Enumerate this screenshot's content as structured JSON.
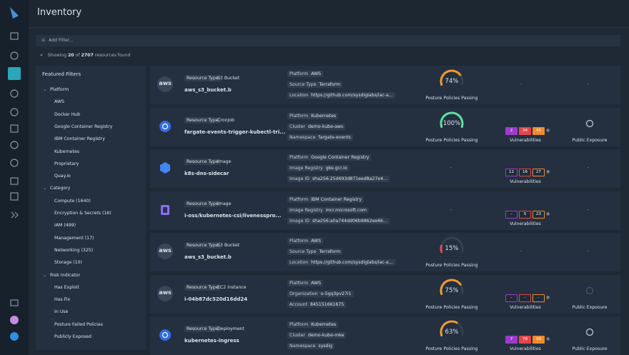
{
  "header": {
    "title": "Inventory"
  },
  "filter_bar": {
    "placeholder": "Add Filter..."
  },
  "summary": {
    "prefix": "Showing",
    "shown": 20,
    "middle": "of",
    "total": 2707,
    "suffix": "resources found"
  },
  "featured_filters": {
    "title": "Featured Filters",
    "groups": [
      {
        "name": "Platform",
        "items": [
          "AWS",
          "Docker Hub",
          "Google Container Registry",
          "IBM Container Registry",
          "Kubernetes",
          "Proprietary",
          "Quay.io"
        ]
      },
      {
        "name": "Category",
        "items": [
          "Compute (1640)",
          "Encryption & Secrets (16)",
          "IAM (499)",
          "Management (17)",
          "Networking (325)",
          "Storage (10)"
        ]
      },
      {
        "name": "Risk Indicator",
        "items": [
          "Has Exploit",
          "Has Fix",
          "In Use",
          "Posture Failed Policies",
          "Publicly Exposed"
        ]
      }
    ]
  },
  "resources": [
    {
      "logo": "aws",
      "type_label": "Resource Type",
      "type": "S3 Bucket",
      "name": "aws_s3_bucket.b",
      "details": [
        [
          "Platform",
          "AWS"
        ],
        [
          "Source Type",
          "Terraform"
        ],
        [
          "Location",
          "https://github.com/sysdiglabs/iac-a..."
        ]
      ],
      "posture": {
        "value": 74,
        "label": "74%",
        "caption": "Posture Policies Passing"
      },
      "vulnerabilities": "-",
      "exposure": "-"
    },
    {
      "type_label": "Resource Type",
      "type": "CronJob",
      "name": "fargate-events-trigger-kubectl-tri...",
      "details": [
        [
          "Platform",
          "Kubernetes"
        ],
        [
          "Cluster",
          "demo-kube-aws"
        ],
        [
          "Namespace",
          "fargate-events"
        ]
      ],
      "posture": {
        "value": 100,
        "label": "100%",
        "caption": "Posture Policies Passing"
      },
      "vulnerabilities": {
        "counts": [
          2,
          34,
          45
        ],
        "caption": "Vulnerabilities"
      },
      "exposure": {
        "caption": "Public Exposure"
      }
    },
    {
      "type_label": "Resource Type",
      "type": "Image",
      "name": "k8s-dns-sidecar",
      "details": [
        [
          "Platform",
          "Google Container Registry"
        ],
        [
          "Image Registry",
          "gke.gcr.io"
        ],
        [
          "Image ID",
          "sha256:25d693d871eed8a27e4..."
        ]
      ],
      "posture": "-",
      "vulnerabilities": {
        "counts": [
          12,
          16,
          27
        ],
        "caption": "Vulnerabilities"
      },
      "exposure": "-"
    },
    {
      "type_label": "Resource Type",
      "type": "Image",
      "name": "i-oss/kubernetes-csi/livenesspro...",
      "details": [
        [
          "Platform",
          "IBM Container Registry"
        ],
        [
          "Image Registry",
          "mcr.microsoft.com"
        ],
        [
          "Image ID",
          "sha256:a0a744dd06b9862ee66..."
        ]
      ],
      "posture": "-",
      "vulnerabilities": {
        "counts": [
          "-",
          5,
          23
        ],
        "caption": "Vulnerabilities"
      },
      "exposure": "-"
    },
    {
      "logo": "aws",
      "type_label": "Resource Type",
      "type": "S3 Bucket",
      "name": "aws_s3_bucket.b",
      "details": [
        [
          "Platform",
          "AWS"
        ],
        [
          "Source Type",
          "Terraform"
        ],
        [
          "Location",
          "https://github.com/sysdiglabs/iac-a..."
        ]
      ],
      "posture": {
        "value": 15,
        "label": "15%",
        "caption": "Posture Policies Passing"
      },
      "vulnerabilities": "-",
      "exposure": "-"
    },
    {
      "logo": "aws",
      "type_label": "Resource Type",
      "type": "EC2 Instance",
      "name": "i-04b87dc520d16dd24",
      "details": [
        [
          "Platform",
          "AWS"
        ],
        [
          "Organization",
          "o-5gq3pv27i1"
        ],
        [
          "Account",
          "845151661675"
        ]
      ],
      "posture": {
        "value": 75,
        "label": "75%",
        "caption": "Posture Policies Passing"
      },
      "vulnerabilities": {
        "counts": [
          "-",
          "-",
          "-"
        ],
        "caption": "Vulnerabilities"
      },
      "exposure": {
        "caption": "Public Exposure"
      }
    },
    {
      "type_label": "Resource Type",
      "type": "Deployment",
      "name": "kubernetes-ingress",
      "details": [
        [
          "Platform",
          "Kubernetes"
        ],
        [
          "Cluster",
          "demo-kube-mke"
        ],
        [
          "Namespace",
          "sysdig"
        ]
      ],
      "posture": {
        "value": 63,
        "label": "63%",
        "caption": "Posture Policies Passing"
      },
      "vulnerabilities": {
        "counts": [
          7,
          78,
          99
        ],
        "caption": "Vulnerabilities"
      },
      "exposure": {
        "caption": "Public Exposure"
      }
    }
  ]
}
